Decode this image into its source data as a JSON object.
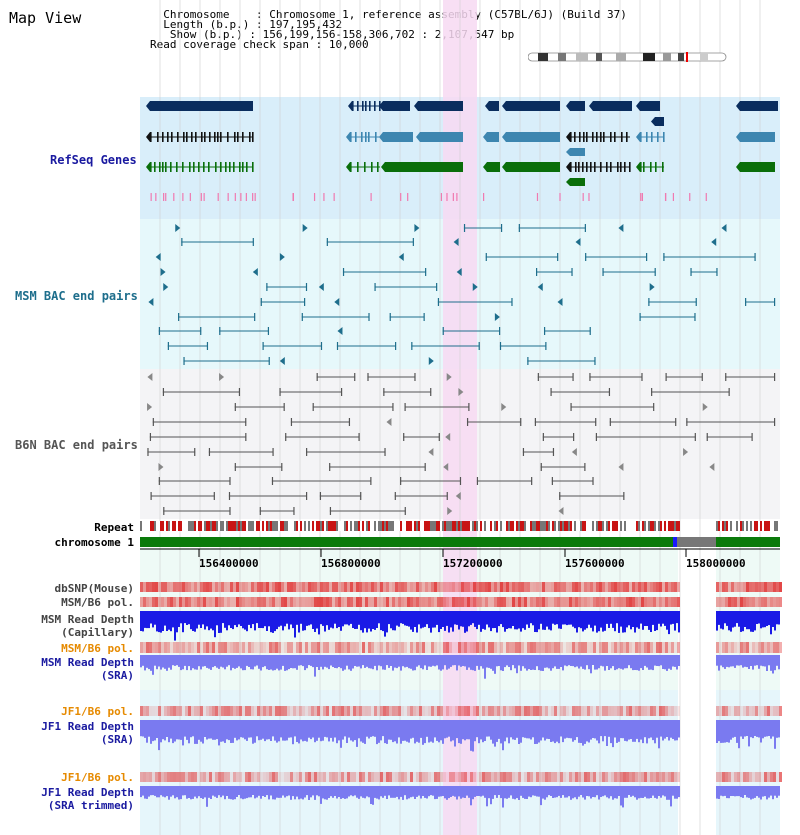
{
  "title": "Map View",
  "info": {
    "chromosome_key": "Chromosome",
    "chromosome_val": "Chromosome 1, reference assembly (C57BL/6J) (Build 37)",
    "length_key": "Length (b.p.)",
    "length_val": "197,195,432",
    "show_key": "Show (b.p.)",
    "show_val": "156,199,156-158,306,702 : 2,107,547 bp",
    "coverage_key": "Read coverage check span",
    "coverage_val": "10,000"
  },
  "tracks": {
    "refseq": "RefSeq Genes",
    "msm_bac": "MSM BAC end pairs",
    "b6n_bac": "B6N BAC end pairs"
  },
  "rows": {
    "repeat": "Repeat",
    "chromosome": "chromosome 1",
    "dbsnp": "dbSNP(Mouse)",
    "msm_b6_pol": "MSM/B6 pol.",
    "msm_read_depth_cap_1": "MSM Read Depth",
    "msm_read_depth_cap_2": "(Capillary)",
    "msm_b6_pol_2": "MSM/B6 pol.",
    "msm_read_depth_sra_1": "MSM Read Depth",
    "msm_read_depth_sra_2": "(SRA)",
    "jf1_b6_pol": "JF1/B6 pol.",
    "jf1_read_depth_1": "JF1 Read Depth",
    "jf1_read_depth_2": "(SRA)",
    "jf1_b6_pol_2": "JF1/B6 pol.",
    "jf1_read_depth_trim_1": "JF1 Read Depth",
    "jf1_read_depth_trim_2": "(SRA trimmed)"
  },
  "axis": {
    "ticks": [
      "156400000",
      "156800000",
      "157200000",
      "157600000",
      "158000000"
    ]
  },
  "colors": {
    "refseq_bg": "#d9eefa",
    "msm_bg": "#e6f8fb",
    "b6n_bg": "#f4f4f6",
    "highlight": "#f7d9f2",
    "gene_dark": "#0a2d5e",
    "gene_mid": "#3d86b0",
    "gene_green": "#0a6e0a",
    "bac_line": "#1e6e8c",
    "b6n_line": "#555555",
    "depth_blue": "#1a1ae6",
    "depth_light": "#7a7af0",
    "label_orange": "#e68a00",
    "label_blue": "#1a1aa0"
  }
}
